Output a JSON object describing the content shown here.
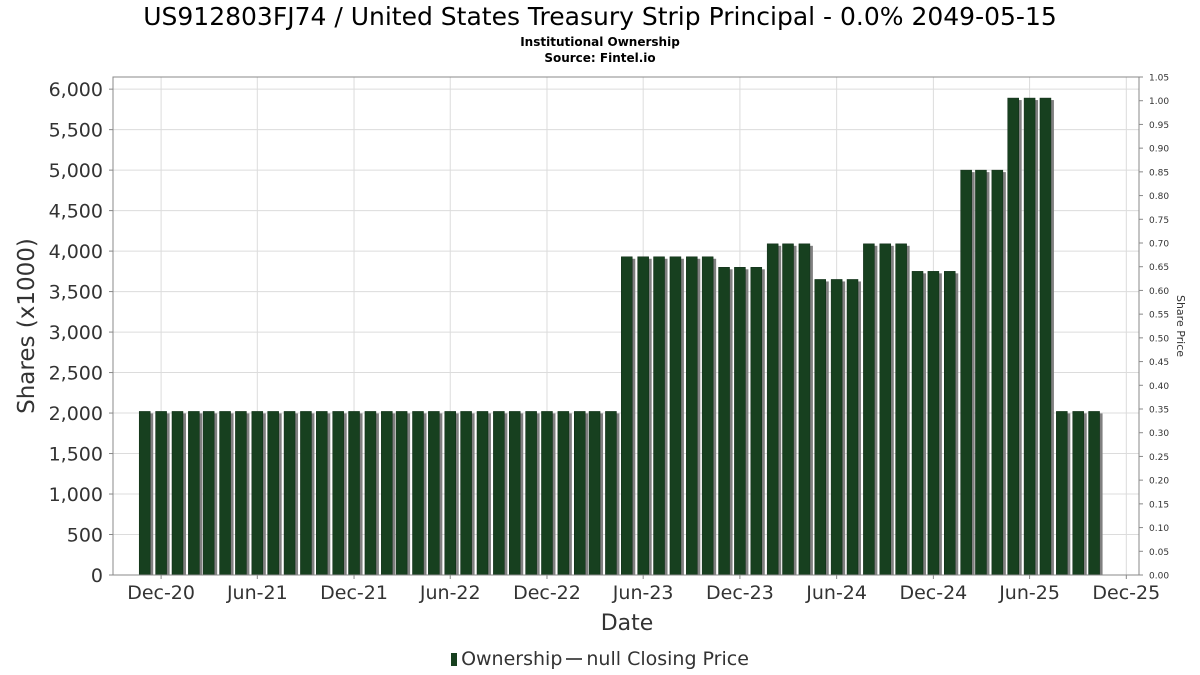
{
  "title": "US912803FJ74 / United States Treasury Strip Principal - 0.0% 2049-05-15",
  "subtitle1": "Institutional Ownership",
  "subtitle2": "Source: Fintel.io",
  "legend": {
    "ownership_label": "Ownership",
    "price_label": "null Closing Price"
  },
  "colors": {
    "bar": "#17401f",
    "bar_shadow": "#808080",
    "grid": "#dcdcdc"
  },
  "chart_data": {
    "type": "bar",
    "xlabel": "Date",
    "ylabel": "Shares (x1000)",
    "y2label": "Share Price",
    "ylim": [
      0,
      6150
    ],
    "y2lim": [
      0,
      1.05
    ],
    "xlim": [
      "2020-09-01",
      "2025-12-25"
    ],
    "grid": true,
    "legend_position": "bottom",
    "y_ticks": [
      "0",
      "500",
      "1,000",
      "1,500",
      "2,000",
      "2,500",
      "3,000",
      "3,500",
      "4,000",
      "4,500",
      "5,000",
      "5,500",
      "6,000"
    ],
    "y2_ticks": [
      "0.00",
      "0.05",
      "0.10",
      "0.15",
      "0.20",
      "0.25",
      "0.30",
      "0.35",
      "0.40",
      "0.45",
      "0.50",
      "0.55",
      "0.60",
      "0.65",
      "0.70",
      "0.75",
      "0.80",
      "0.85",
      "0.90",
      "0.95",
      "1.00",
      "1.05"
    ],
    "x_ticks": [
      {
        "label": "Dec-20",
        "date": "2020-12-01"
      },
      {
        "label": "Jun-21",
        "date": "2021-06-01"
      },
      {
        "label": "Dec-21",
        "date": "2021-12-01"
      },
      {
        "label": "Jun-22",
        "date": "2022-06-01"
      },
      {
        "label": "Dec-22",
        "date": "2022-12-01"
      },
      {
        "label": "Jun-23",
        "date": "2023-06-01"
      },
      {
        "label": "Dec-23",
        "date": "2023-12-01"
      },
      {
        "label": "Jun-24",
        "date": "2024-06-01"
      },
      {
        "label": "Dec-24",
        "date": "2024-12-01"
      },
      {
        "label": "Jun-25",
        "date": "2025-06-01"
      },
      {
        "label": "Dec-25",
        "date": "2025-12-01"
      }
    ],
    "series": [
      {
        "name": "Ownership",
        "dates": [
          "2020-10-31",
          "2020-12-01",
          "2021-01-01",
          "2021-02-01",
          "2021-03-01",
          "2021-04-01",
          "2021-05-01",
          "2021-06-01",
          "2021-07-01",
          "2021-08-01",
          "2021-09-01",
          "2021-10-01",
          "2021-11-01",
          "2021-12-01",
          "2022-01-01",
          "2022-02-01",
          "2022-03-01",
          "2022-04-01",
          "2022-05-01",
          "2022-06-01",
          "2022-07-01",
          "2022-08-01",
          "2022-09-01",
          "2022-10-01",
          "2022-11-01",
          "2022-12-01",
          "2023-01-01",
          "2023-02-01",
          "2023-03-01",
          "2023-04-01",
          "2023-05-01",
          "2023-06-01",
          "2023-07-01",
          "2023-08-01",
          "2023-09-01",
          "2023-10-01",
          "2023-11-01",
          "2023-12-01",
          "2024-01-01",
          "2024-02-01",
          "2024-03-01",
          "2024-04-01",
          "2024-05-01",
          "2024-06-01",
          "2024-07-01",
          "2024-08-01",
          "2024-09-01",
          "2024-10-01",
          "2024-11-01",
          "2024-12-01",
          "2025-01-01",
          "2025-02-01",
          "2025-03-01",
          "2025-04-01",
          "2025-05-01",
          "2025-06-01",
          "2025-07-01",
          "2025-08-01",
          "2025-09-01",
          "2025-10-01"
        ],
        "values": [
          2020,
          2020,
          2020,
          2020,
          2020,
          2020,
          2020,
          2020,
          2020,
          2020,
          2020,
          2020,
          2020,
          2020,
          2020,
          2020,
          2020,
          2020,
          2020,
          2020,
          2020,
          2020,
          2020,
          2020,
          2020,
          2020,
          2020,
          2020,
          2020,
          2020,
          3930,
          3930,
          3930,
          3930,
          3930,
          3930,
          3800,
          3800,
          3800,
          4090,
          4090,
          4090,
          3650,
          3650,
          3650,
          4090,
          4090,
          4090,
          3750,
          3750,
          3750,
          5000,
          5000,
          5000,
          5890,
          5890,
          5890,
          2020,
          2020,
          2020
        ]
      }
    ]
  }
}
